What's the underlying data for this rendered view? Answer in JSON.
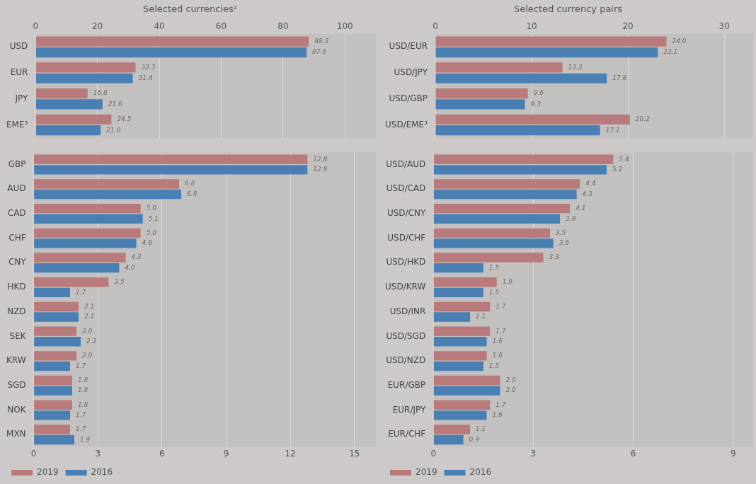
{
  "chart_data": [
    {
      "type": "bar",
      "orientation": "horizontal",
      "title": "Selected currencies²",
      "categories": [
        "USD",
        "EUR",
        "JPY",
        "EME³"
      ],
      "series": [
        {
          "color": "#b87a7a",
          "values": [
            88.3,
            32.3,
            16.8,
            24.5
          ],
          "value_labels": [
            "88.3",
            "32.3",
            "16.8",
            "24.5"
          ]
        },
        {
          "color": "#4a7fb3",
          "values": [
            87.6,
            31.4,
            21.6,
            21.0
          ],
          "value_labels": [
            "87.6",
            "31.4",
            "21.6",
            "21.0"
          ]
        }
      ],
      "x2lim": [
        0,
        110
      ],
      "x2ticks": [
        0,
        20,
        40,
        60,
        80,
        100
      ],
      "grid": "x",
      "legend": false
    },
    {
      "type": "bar",
      "orientation": "horizontal",
      "title": "Selected currency pairs",
      "categories": [
        "USD/EUR",
        "USD/JPY",
        "USD/GBP",
        "USD/EME³"
      ],
      "series": [
        {
          "color": "#b87a7a",
          "values": [
            24.0,
            13.2,
            9.6,
            20.2
          ],
          "value_labels": [
            "24.0",
            "13.2",
            "9.6",
            "20.2"
          ]
        },
        {
          "color": "#4a7fb3",
          "values": [
            23.1,
            17.8,
            9.3,
            17.1
          ],
          "value_labels": [
            "23.1",
            "17.8",
            "9.3",
            "17.1"
          ]
        }
      ],
      "x2lim": [
        0,
        33
      ],
      "x2ticks": [
        0,
        10,
        20,
        30
      ],
      "grid": "x",
      "legend": false
    },
    {
      "type": "bar",
      "orientation": "horizontal",
      "categories": [
        "GBP",
        "AUD",
        "CAD",
        "CHF",
        "CNY",
        "HKD",
        "NZD",
        "SEK",
        "KRW",
        "SGD",
        "NOK",
        "MXN"
      ],
      "series": [
        {
          "name": "2019",
          "color": "#b87a7a",
          "values": [
            12.8,
            6.8,
            5.0,
            5.0,
            4.3,
            3.5,
            2.1,
            2.0,
            2.0,
            1.8,
            1.8,
            1.7
          ],
          "value_labels": [
            "12.8",
            "6.8",
            "5.0",
            "5.0",
            "4.3",
            "3.5",
            "2.1",
            "2.0",
            "2.0",
            "1.8",
            "1.8",
            "1.7"
          ]
        },
        {
          "name": "2016",
          "color": "#4a7fb3",
          "values": [
            12.8,
            6.9,
            5.1,
            4.8,
            4.0,
            1.7,
            2.1,
            2.2,
            1.7,
            1.8,
            1.7,
            1.9
          ],
          "value_labels": [
            "12.8",
            "6.9",
            "5.1",
            "4.8",
            "4.0",
            "1.7",
            "2.1",
            "2.2",
            "1.7",
            "1.8",
            "1.7",
            "1.9"
          ]
        }
      ],
      "xlim": [
        0,
        16
      ],
      "xticks": [
        0,
        3,
        6,
        9,
        12,
        15
      ],
      "grid": "x",
      "legend": "bottom"
    },
    {
      "type": "bar",
      "orientation": "horizontal",
      "categories": [
        "USD/AUD",
        "USD/CAD",
        "USD/CNY",
        "USD/CHF",
        "USD/HKD",
        "USD/KRW",
        "USD/INR",
        "USD/SGD",
        "USD/NZD",
        "EUR/GBP",
        "EUR/JPY",
        "EUR/CHF"
      ],
      "series": [
        {
          "name": "2019",
          "color": "#b87a7a",
          "values": [
            5.4,
            4.4,
            4.1,
            3.5,
            3.3,
            1.9,
            1.7,
            1.7,
            1.6,
            2.0,
            1.7,
            1.1
          ],
          "value_labels": [
            "5.4",
            "4.4",
            "4.1",
            "3.5",
            "3.3",
            "1.9",
            "1.7",
            "1.7",
            "1.6",
            "2.0",
            "1.7",
            "1.1"
          ]
        },
        {
          "name": "2016",
          "color": "#4a7fb3",
          "values": [
            5.2,
            4.3,
            3.8,
            3.6,
            1.5,
            1.5,
            1.1,
            1.6,
            1.5,
            2.0,
            1.6,
            0.9
          ],
          "value_labels": [
            "5.2",
            "4.3",
            "3.8",
            "3.6",
            "1.5",
            "1.5",
            "1.1",
            "1.6",
            "1.5",
            "2.0",
            "1.6",
            "0.9"
          ]
        }
      ],
      "xlim": [
        0,
        9.6
      ],
      "xticks": [
        0,
        3,
        6,
        9
      ],
      "grid": "x",
      "legend": "bottom"
    }
  ]
}
